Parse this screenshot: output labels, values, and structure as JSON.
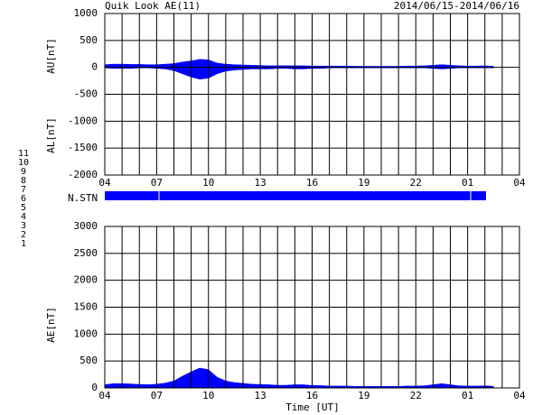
{
  "chart_data": [
    {
      "type": "area",
      "title": "Quik Look AE(11)",
      "subtitle": "2014/06/15-2014/06/16",
      "ylabels": [
        "AU[nT]",
        "AL[nT]"
      ],
      "x": [
        4,
        4.5,
        5,
        5.5,
        6,
        6.5,
        7,
        7.5,
        8,
        8.5,
        9,
        9.5,
        10,
        10.5,
        11,
        11.5,
        12,
        12.5,
        13,
        13.5,
        14,
        14.5,
        15,
        15.5,
        16,
        16.5,
        17,
        17.5,
        18,
        18.5,
        19,
        19.5,
        20,
        20.5,
        21,
        21.5,
        22,
        22.5,
        23,
        23.5,
        24,
        24.5,
        25,
        25.5,
        26,
        26.5
      ],
      "series": [
        {
          "color": "#0000ff",
          "values": [
            50,
            60,
            60,
            55,
            55,
            50,
            50,
            60,
            70,
            100,
            120,
            150,
            140,
            80,
            60,
            50,
            45,
            40,
            35,
            30,
            30,
            30,
            30,
            30,
            25,
            25,
            25,
            25,
            25,
            20,
            20,
            20,
            20,
            20,
            20,
            25,
            25,
            30,
            40,
            50,
            40,
            30,
            25,
            25,
            30,
            20
          ]
        },
        {
          "color": "#0000ff",
          "values": [
            -10,
            -20,
            -20,
            -20,
            -10,
            -10,
            -20,
            -30,
            -60,
            -120,
            -180,
            -220,
            -200,
            -120,
            -70,
            -50,
            -40,
            -30,
            -30,
            -30,
            -20,
            -20,
            -30,
            -30,
            -20,
            -20,
            -10,
            -10,
            -10,
            -10,
            -10,
            -10,
            -10,
            -10,
            -10,
            -10,
            -10,
            -10,
            -20,
            -30,
            -20,
            -10,
            -10,
            -10,
            -10,
            -10
          ]
        }
      ],
      "xlim": [
        4,
        28
      ],
      "xticks": [
        {
          "value": 4,
          "label": "04"
        },
        {
          "value": 7,
          "label": "07"
        },
        {
          "value": 10,
          "label": "10"
        },
        13,
        16,
        19,
        22,
        {
          "value": 25,
          "label": "01"
        },
        {
          "value": 28,
          "label": "04"
        }
      ],
      "minor_xticks": [
        4,
        5,
        6,
        7,
        8,
        9,
        10,
        11,
        12,
        13,
        14,
        15,
        16,
        17,
        18,
        19,
        20,
        21,
        22,
        23,
        24,
        25,
        26,
        27,
        28
      ],
      "ylim": [
        -2000,
        1000
      ],
      "yticks": [
        -2000,
        -1500,
        -1000,
        -500,
        0,
        500,
        1000
      ],
      "grid": true
    },
    {
      "type": "area",
      "ylabels": [
        "AE[nT]"
      ],
      "xlabel": "Time [UT]",
      "x": [
        4,
        4.5,
        5,
        5.5,
        6,
        6.5,
        7,
        7.5,
        8,
        8.5,
        9,
        9.5,
        10,
        10.5,
        11,
        11.5,
        12,
        12.5,
        13,
        13.5,
        14,
        14.5,
        15,
        15.5,
        16,
        16.5,
        17,
        17.5,
        18,
        18.5,
        19,
        19.5,
        20,
        20.5,
        21,
        21.5,
        22,
        22.5,
        23,
        23.5,
        24,
        24.5,
        25,
        25.5,
        26,
        26.5
      ],
      "series": [
        {
          "color": "#0000ff",
          "values": [
            60,
            80,
            80,
            75,
            65,
            60,
            70,
            90,
            130,
            220,
            300,
            370,
            340,
            200,
            130,
            100,
            85,
            70,
            65,
            60,
            50,
            50,
            60,
            60,
            45,
            45,
            35,
            35,
            35,
            30,
            30,
            30,
            30,
            30,
            30,
            35,
            35,
            40,
            60,
            80,
            60,
            40,
            35,
            35,
            40,
            30
          ]
        }
      ],
      "xlim": [
        4,
        28
      ],
      "xticks": [
        {
          "value": 4,
          "label": "04"
        },
        {
          "value": 7,
          "label": "07"
        },
        {
          "value": 10,
          "label": "10"
        },
        13,
        16,
        19,
        22,
        {
          "value": 25,
          "label": "01"
        },
        {
          "value": 28,
          "label": "04"
        }
      ],
      "minor_xticks": [
        4,
        5,
        6,
        7,
        8,
        9,
        10,
        11,
        12,
        13,
        14,
        15,
        16,
        17,
        18,
        19,
        20,
        21,
        22,
        23,
        24,
        25,
        26,
        27,
        28
      ],
      "ylim": [
        0,
        3000
      ],
      "yticks": [
        0,
        500,
        1000,
        1500,
        2000,
        2500,
        3000
      ],
      "grid": true
    }
  ],
  "station_bar": {
    "label": "N.STN",
    "color": "#0000ff"
  },
  "station_legend": [
    {
      "label": "11",
      "color": "#00e0e0"
    },
    {
      "label": "10",
      "color": "#e000e0"
    },
    {
      "label": "9",
      "color": "#0000e0"
    },
    {
      "label": "8",
      "color": "#f0e060"
    },
    {
      "label": "7",
      "color": "#80e080"
    },
    {
      "label": "6",
      "color": "#e00000"
    },
    {
      "label": "5",
      "color": "#d8d8d8"
    },
    {
      "label": "4",
      "color": "#a0a0a0"
    },
    {
      "label": "3",
      "color": "#008080"
    },
    {
      "label": "2",
      "color": "#800080"
    },
    {
      "label": "1",
      "color": "#0000a0"
    }
  ]
}
